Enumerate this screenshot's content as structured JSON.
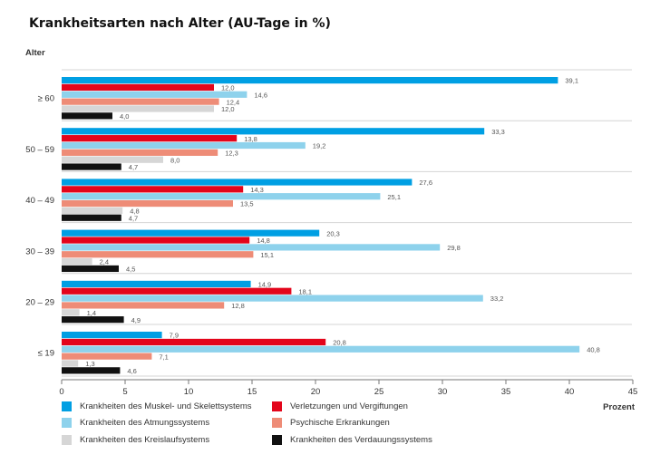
{
  "title": "Krankheitsarten nach Alter (AU-Tage in %)",
  "chart_data": {
    "type": "bar",
    "orientation": "horizontal",
    "title": "Krankheitsarten nach Alter (AU-Tage in %)",
    "ylabel": "Alter",
    "xlabel": "Prozent",
    "xlim": [
      0,
      45
    ],
    "xticks": [
      0,
      5,
      10,
      15,
      20,
      25,
      30,
      35,
      40,
      45
    ],
    "categories": [
      "≥ 60",
      "50 – 59",
      "40 – 49",
      "30 – 39",
      "20 – 29",
      "≤ 19"
    ],
    "series": [
      {
        "name": "Krankheiten des Muskel- und Skelettsystems",
        "color": "#009fe3",
        "values": [
          39.1,
          33.3,
          27.6,
          20.3,
          14.9,
          7.9
        ],
        "labels": [
          "39,1",
          "33,3",
          "27,6",
          "20,3",
          "14,9",
          "7,9"
        ]
      },
      {
        "name": "Verletzungen und Vergiftungen",
        "color": "#e3051b",
        "values": [
          12.0,
          13.8,
          14.3,
          14.8,
          18.1,
          20.8
        ],
        "labels": [
          "12,0",
          "13,8",
          "14,3",
          "14,8",
          "18,1",
          "20,8"
        ]
      },
      {
        "name": "Krankheiten des Atmungssystems",
        "color": "#8ed2ec",
        "values": [
          14.6,
          19.2,
          25.1,
          29.8,
          33.2,
          40.8
        ],
        "labels": [
          "14,6",
          "19,2",
          "25,1",
          "29,8",
          "33,2",
          "40,8"
        ]
      },
      {
        "name": "Psychische Erkrankungen",
        "color": "#ee8c77",
        "values": [
          12.4,
          12.3,
          13.5,
          15.1,
          12.8,
          7.1
        ],
        "labels": [
          "12,4",
          "12,3",
          "13,5",
          "15,1",
          "12,8",
          "7,1"
        ]
      },
      {
        "name": "Krankheiten des Kreislaufsystems",
        "color": "#d6d6d6",
        "values": [
          12.0,
          8.0,
          4.8,
          2.4,
          1.4,
          1.3
        ],
        "labels": [
          "12,0",
          "8,0",
          "4,8",
          "2,4",
          "1,4",
          "1,3"
        ]
      },
      {
        "name": "Krankheiten des Verdauungssystems",
        "color": "#111111",
        "values": [
          4.0,
          4.7,
          4.7,
          4.5,
          4.9,
          4.6
        ],
        "labels": [
          "4,0",
          "4,7",
          "4,7",
          "4,5",
          "4,9",
          "4,6"
        ]
      }
    ],
    "legend_position": "bottom",
    "grid": true
  }
}
